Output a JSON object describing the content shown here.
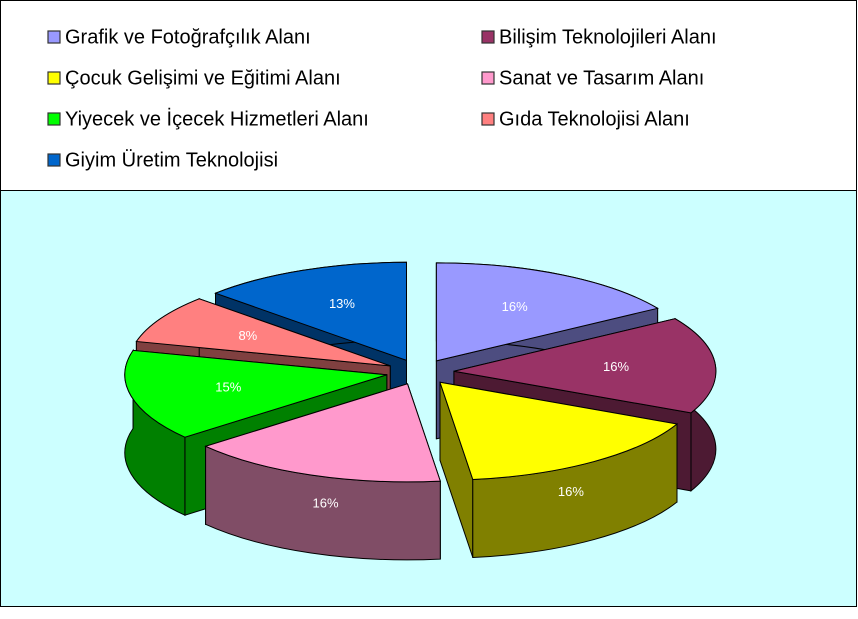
{
  "chart_data": {
    "type": "pie",
    "categories": [
      "Grafik ve Fotoğrafçılık Alanı",
      "Bilişim Teknolojileri Alanı",
      "Çocuk Gelişimi ve Eğitimi Alanı",
      "Sanat ve Tasarım Alanı",
      "Yiyecek ve İçecek Hizmetleri Alanı",
      "Gıda Teknolojisi Alanı",
      "Giyim Üretim Teknolojisi"
    ],
    "values": [
      16,
      16,
      16,
      16,
      15,
      8,
      13
    ],
    "value_labels": [
      "16%",
      "16%",
      "16%",
      "16%",
      "15%",
      "8%",
      "13%"
    ],
    "colors": [
      "#9999ff",
      "#993366",
      "#ffff00",
      "#ff99cc",
      "#00ff00",
      "#ff8080",
      "#0066cc"
    ],
    "legend": "top"
  }
}
